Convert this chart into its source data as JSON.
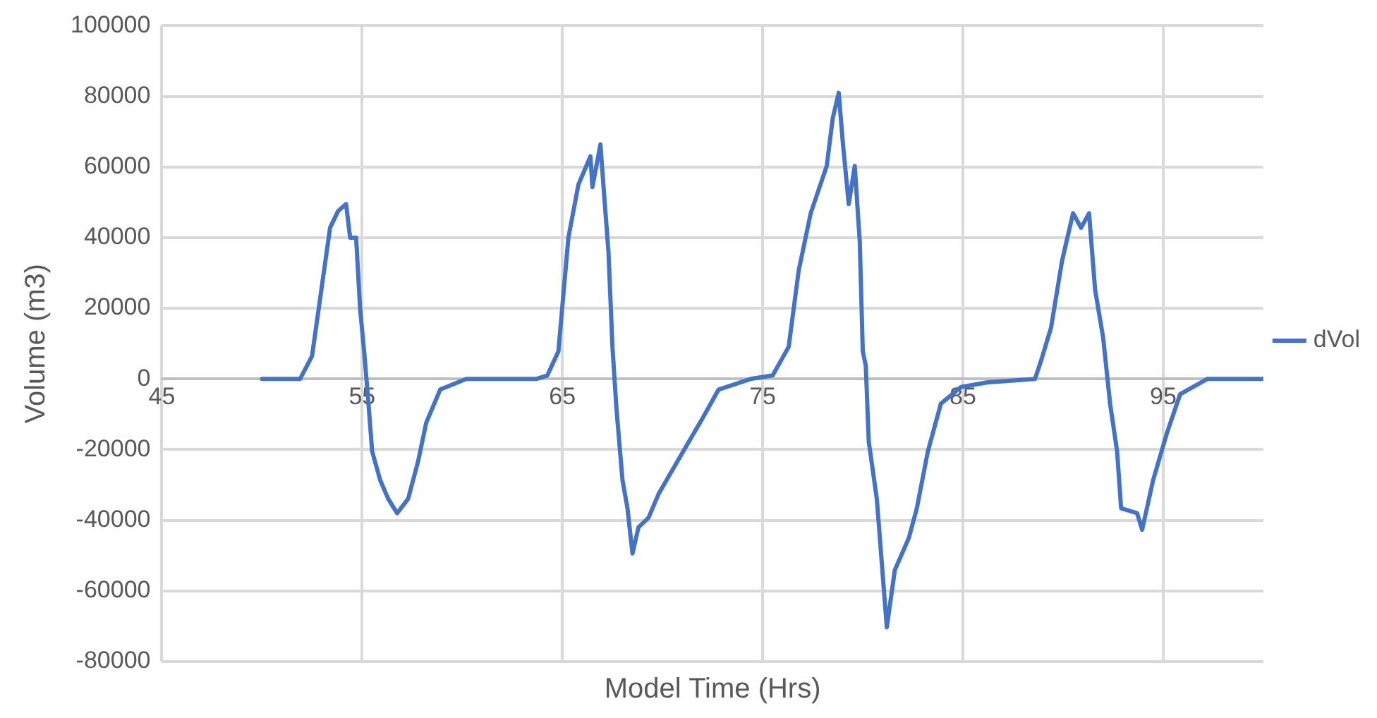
{
  "chart_data": {
    "type": "line",
    "xlabel": "Model Time (Hrs)",
    "ylabel": "Volume (m3)",
    "xlim": [
      45,
      100
    ],
    "xticks": [
      45,
      55,
      65,
      75,
      85,
      95
    ],
    "ylim": [
      -80000,
      100000
    ],
    "yticks": [
      -80000,
      -60000,
      -40000,
      -20000,
      0,
      20000,
      40000,
      60000,
      80000,
      100000
    ],
    "grid": true,
    "legend": "right",
    "marker": "none",
    "line_style": "solid",
    "series": [
      {
        "name": "dVol",
        "color": "#4472c4",
        "x": [
          50,
          51.9,
          52.5,
          53.0,
          53.4,
          53.8,
          54.2,
          54.4,
          54.7,
          54.9,
          55.1,
          55.3,
          55.5,
          55.9,
          56.3,
          56.75,
          57.3,
          57.8,
          58.2,
          58.9,
          60.2,
          63.7,
          64.25,
          64.8,
          65.3,
          65.8,
          66.4,
          66.5,
          66.9,
          67.1,
          67.3,
          67.5,
          67.7,
          68.0,
          68.25,
          68.5,
          68.8,
          69.3,
          69.8,
          70.9,
          72.0,
          72.8,
          74.4,
          75.5,
          76.3,
          76.8,
          77.4,
          78.2,
          78.5,
          78.8,
          79.0,
          79.3,
          79.6,
          79.85,
          80.0,
          80.15,
          80.3,
          80.7,
          81.2,
          81.6,
          82.3,
          82.7,
          83.25,
          83.9,
          84.9,
          86.2,
          88.6,
          88.9,
          89.4,
          89.95,
          90.5,
          90.9,
          91.3,
          91.6,
          92.0,
          92.35,
          92.7,
          92.9,
          93.7,
          93.95,
          94.5,
          95.2,
          95.85,
          97.2,
          100
        ],
        "values": [
          0,
          0,
          6500,
          26700,
          42800,
          47500,
          49500,
          40000,
          40000,
          19900,
          7800,
          -5700,
          -20500,
          -28600,
          -33900,
          -38000,
          -33900,
          -23200,
          -12400,
          -3000,
          0,
          0,
          1000,
          7800,
          40000,
          55000,
          63000,
          54300,
          66400,
          50900,
          36100,
          9100,
          -8400,
          -28600,
          -36600,
          -49400,
          -42000,
          -39300,
          -32600,
          -21800,
          -11100,
          -3000,
          0,
          1000,
          9100,
          30700,
          46900,
          60300,
          73800,
          81000,
          67100,
          49500,
          60300,
          38800,
          7800,
          3800,
          -17800,
          -33900,
          -70300,
          -54100,
          -45000,
          -36600,
          -20500,
          -7000,
          -2300,
          -1000,
          0,
          5100,
          14500,
          33400,
          46900,
          42800,
          46900,
          25300,
          11800,
          -7000,
          -20500,
          -36600,
          -38000,
          -42700,
          -28600,
          -15100,
          -4300,
          0,
          0
        ]
      }
    ]
  }
}
